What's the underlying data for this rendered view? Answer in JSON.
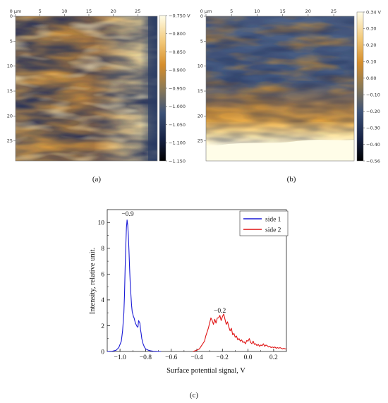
{
  "panels": {
    "a": {
      "label": "(a)"
    },
    "b": {
      "label": "(b)"
    },
    "c": {
      "label": "(c)"
    }
  },
  "colors": {
    "series_1": "#1a1ad6",
    "series_2": "#e01414",
    "map_low": "#000000",
    "map_mid": "#1c2a5a",
    "map_high": "#fffde8",
    "map_orange": "#d9902e"
  },
  "chart_data": [
    {
      "type": "heatmap",
      "panel": "a",
      "x_ticks": [
        "0 µm",
        "5",
        "10",
        "15",
        "20",
        "25"
      ],
      "y_ticks": [
        "0",
        "5",
        "10",
        "15",
        "20",
        "25"
      ],
      "extent_um": [
        0,
        29
      ],
      "colorbar": {
        "ticks": [
          "-0.750 V",
          "-0.800",
          "-0.850",
          "-0.900",
          "-0.950",
          "-1.000",
          "-1.050",
          "-1.100",
          "-1.150"
        ],
        "range": [
          -1.165,
          -0.735
        ]
      }
    },
    {
      "type": "heatmap",
      "panel": "b",
      "x_ticks": [
        "0 µm",
        "5",
        "10",
        "15",
        "20",
        "25"
      ],
      "y_ticks": [
        "0",
        "5",
        "10",
        "15",
        "20",
        "25"
      ],
      "extent_um": [
        0,
        29
      ],
      "colorbar": {
        "ticks": [
          "0.34 V",
          "0.30",
          "0.20",
          "0.10",
          "0.00",
          "-0.10",
          "-0.20",
          "-0.30",
          "-0.40",
          "-0.56"
        ],
        "range": [
          -0.56,
          0.34
        ]
      }
    },
    {
      "type": "line",
      "panel": "c",
      "xlabel": "Surface potential signal, V",
      "ylabel": "Intensity, relative unit.",
      "xlim": [
        -1.1,
        0.3
      ],
      "ylim": [
        0,
        11
      ],
      "x_ticks": [
        "-1.0",
        "-0.8",
        "-0.6",
        "-0.4",
        "-0.2",
        "0.0",
        "0.2"
      ],
      "x_tick_values": [
        -1.0,
        -0.8,
        -0.6,
        -0.4,
        -0.2,
        0.0,
        0.2
      ],
      "y_ticks": [
        "0",
        "2",
        "4",
        "6",
        "8",
        "10"
      ],
      "y_tick_values": [
        0,
        2,
        4,
        6,
        8,
        10
      ],
      "legend_position": "top-right",
      "annotations": [
        {
          "text": "−0.9",
          "x": -0.94,
          "y": 10.3
        },
        {
          "text": "−0.2",
          "x": -0.22,
          "y": 2.8
        }
      ],
      "series": [
        {
          "name": "side 1",
          "color": "#1a1ad6",
          "x": [
            -1.1,
            -1.06,
            -1.03,
            -1.01,
            -0.99,
            -0.98,
            -0.97,
            -0.965,
            -0.96,
            -0.955,
            -0.95,
            -0.945,
            -0.94,
            -0.935,
            -0.93,
            -0.925,
            -0.92,
            -0.915,
            -0.91,
            -0.905,
            -0.9,
            -0.895,
            -0.89,
            -0.885,
            -0.88,
            -0.875,
            -0.87,
            -0.865,
            -0.86,
            -0.855,
            -0.85,
            -0.845,
            -0.84,
            -0.835,
            -0.83,
            -0.82,
            -0.81,
            -0.8,
            -0.78,
            -0.76,
            -0.74,
            -0.72,
            -0.7,
            -0.68
          ],
          "y": [
            0.0,
            0.02,
            0.1,
            0.3,
            0.8,
            1.6,
            3.0,
            4.4,
            6.5,
            8.2,
            9.6,
            10.2,
            9.8,
            9.0,
            7.8,
            6.4,
            5.2,
            4.4,
            3.6,
            3.1,
            2.9,
            2.7,
            2.6,
            2.4,
            2.2,
            2.1,
            2.0,
            1.9,
            1.9,
            2.4,
            2.3,
            2.2,
            1.7,
            1.4,
            1.0,
            0.6,
            0.35,
            0.2,
            0.1,
            0.05,
            0.02,
            0.01,
            0.0,
            0.0
          ]
        },
        {
          "name": "side 2",
          "color": "#e01414",
          "x": [
            -0.43,
            -0.4,
            -0.38,
            -0.36,
            -0.34,
            -0.33,
            -0.32,
            -0.31,
            -0.3,
            -0.29,
            -0.28,
            -0.27,
            -0.26,
            -0.25,
            -0.24,
            -0.23,
            -0.22,
            -0.21,
            -0.2,
            -0.19,
            -0.18,
            -0.17,
            -0.16,
            -0.15,
            -0.14,
            -0.13,
            -0.12,
            -0.11,
            -0.1,
            -0.09,
            -0.08,
            -0.07,
            -0.06,
            -0.05,
            -0.04,
            -0.03,
            -0.02,
            -0.01,
            0.0,
            0.01,
            0.02,
            0.03,
            0.04,
            0.05,
            0.06,
            0.07,
            0.08,
            0.09,
            0.1,
            0.11,
            0.12,
            0.13,
            0.14,
            0.15,
            0.16,
            0.17,
            0.18,
            0.19,
            0.2,
            0.21,
            0.22,
            0.23,
            0.24,
            0.25,
            0.26,
            0.27,
            0.28,
            0.29,
            0.3
          ],
          "y": [
            0.0,
            0.1,
            0.2,
            0.5,
            0.8,
            1.2,
            1.5,
            1.8,
            2.2,
            2.6,
            2.4,
            2.1,
            2.5,
            2.2,
            2.6,
            2.6,
            2.8,
            2.4,
            2.7,
            2.9,
            2.5,
            2.1,
            2.3,
            1.9,
            1.6,
            1.8,
            1.3,
            1.4,
            1.1,
            1.2,
            0.9,
            1.0,
            0.8,
            0.9,
            0.7,
            0.75,
            0.6,
            0.85,
            0.8,
            1.0,
            0.7,
            0.6,
            0.8,
            0.55,
            0.6,
            0.45,
            0.55,
            0.4,
            0.5,
            0.45,
            0.6,
            0.4,
            0.5,
            0.45,
            0.35,
            0.4,
            0.3,
            0.35,
            0.3,
            0.35,
            0.25,
            0.3,
            0.25,
            0.3,
            0.25,
            0.2,
            0.25,
            0.2,
            0.2
          ]
        }
      ]
    }
  ]
}
